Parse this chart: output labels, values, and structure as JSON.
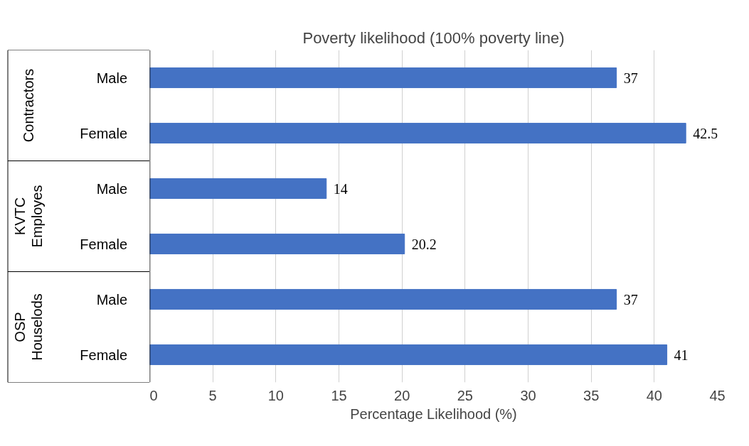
{
  "chart_data": {
    "type": "bar",
    "orientation": "horizontal",
    "title": "Poverty likelihood (100% poverty line)",
    "xlabel": "Percentage Likelihood (%)",
    "categories": [
      "Male",
      "Female",
      "Male",
      "Female",
      "Male",
      "Female"
    ],
    "values": [
      37,
      42.5,
      14,
      20.2,
      37,
      41
    ],
    "color": "#4472c4",
    "annotations": [
      "Contractors",
      "KVTC Employes",
      "OSP Houselods"
    ],
    "xlim": [
      0,
      45
    ],
    "xticks": [
      0,
      5,
      10,
      15,
      20,
      25,
      30,
      35,
      40,
      45
    ],
    "grid": "x",
    "data_labels": true
  }
}
